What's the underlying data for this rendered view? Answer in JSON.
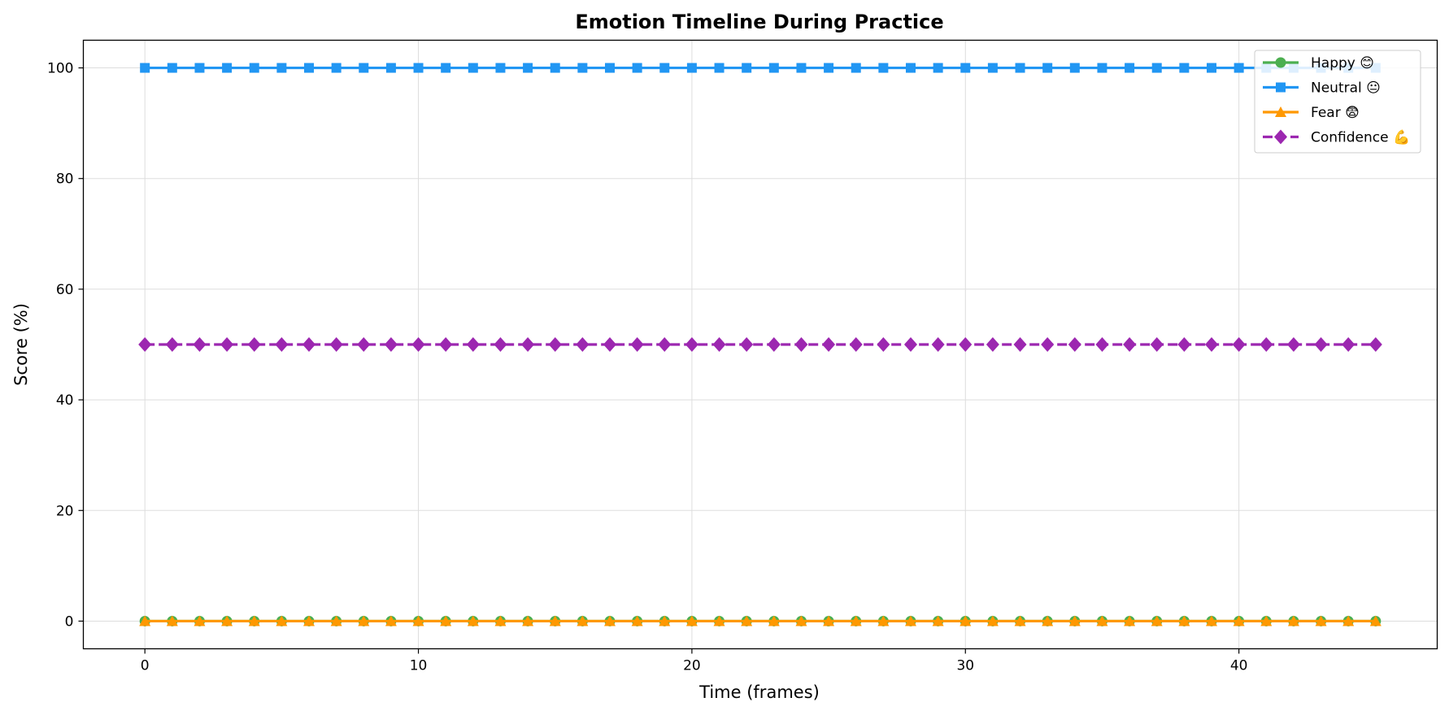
{
  "chart_data": {
    "type": "line",
    "title": "Emotion Timeline During Practice",
    "xlabel": "Time (frames)",
    "ylabel": "Score (%)",
    "xlim": [
      -2.25,
      47.25
    ],
    "ylim": [
      -5,
      105
    ],
    "xticks": [
      0,
      10,
      20,
      30,
      40
    ],
    "yticks": [
      0,
      20,
      40,
      60,
      80,
      100
    ],
    "grid": true,
    "legend_position": "top-right",
    "x": [
      0,
      1,
      2,
      3,
      4,
      5,
      6,
      7,
      8,
      9,
      10,
      11,
      12,
      13,
      14,
      15,
      16,
      17,
      18,
      19,
      20,
      21,
      22,
      23,
      24,
      25,
      26,
      27,
      28,
      29,
      30,
      31,
      32,
      33,
      34,
      35,
      36,
      37,
      38,
      39,
      40,
      41,
      42,
      43,
      44,
      45
    ],
    "series": [
      {
        "name": "Happy 😊",
        "color": "#4caf50",
        "marker": "circle",
        "dash": "solid",
        "values": [
          0,
          0,
          0,
          0,
          0,
          0,
          0,
          0,
          0,
          0,
          0,
          0,
          0,
          0,
          0,
          0,
          0,
          0,
          0,
          0,
          0,
          0,
          0,
          0,
          0,
          0,
          0,
          0,
          0,
          0,
          0,
          0,
          0,
          0,
          0,
          0,
          0,
          0,
          0,
          0,
          0,
          0,
          0,
          0,
          0,
          0
        ]
      },
      {
        "name": "Neutral 😐",
        "color": "#2196f3",
        "marker": "square",
        "dash": "solid",
        "values": [
          100,
          100,
          100,
          100,
          100,
          100,
          100,
          100,
          100,
          100,
          100,
          100,
          100,
          100,
          100,
          100,
          100,
          100,
          100,
          100,
          100,
          100,
          100,
          100,
          100,
          100,
          100,
          100,
          100,
          100,
          100,
          100,
          100,
          100,
          100,
          100,
          100,
          100,
          100,
          100,
          100,
          100,
          100,
          100,
          100,
          100
        ]
      },
      {
        "name": "Fear 😨",
        "color": "#ff9800",
        "marker": "triangle",
        "dash": "solid",
        "values": [
          0,
          0,
          0,
          0,
          0,
          0,
          0,
          0,
          0,
          0,
          0,
          0,
          0,
          0,
          0,
          0,
          0,
          0,
          0,
          0,
          0,
          0,
          0,
          0,
          0,
          0,
          0,
          0,
          0,
          0,
          0,
          0,
          0,
          0,
          0,
          0,
          0,
          0,
          0,
          0,
          0,
          0,
          0,
          0,
          0,
          0
        ]
      },
      {
        "name": "Confidence 💪",
        "color": "#9c27b0",
        "marker": "diamond",
        "dash": "dashed",
        "values": [
          50,
          50,
          50,
          50,
          50,
          50,
          50,
          50,
          50,
          50,
          50,
          50,
          50,
          50,
          50,
          50,
          50,
          50,
          50,
          50,
          50,
          50,
          50,
          50,
          50,
          50,
          50,
          50,
          50,
          50,
          50,
          50,
          50,
          50,
          50,
          50,
          50,
          50,
          50,
          50,
          50,
          50,
          50,
          50,
          50,
          50
        ]
      }
    ]
  }
}
